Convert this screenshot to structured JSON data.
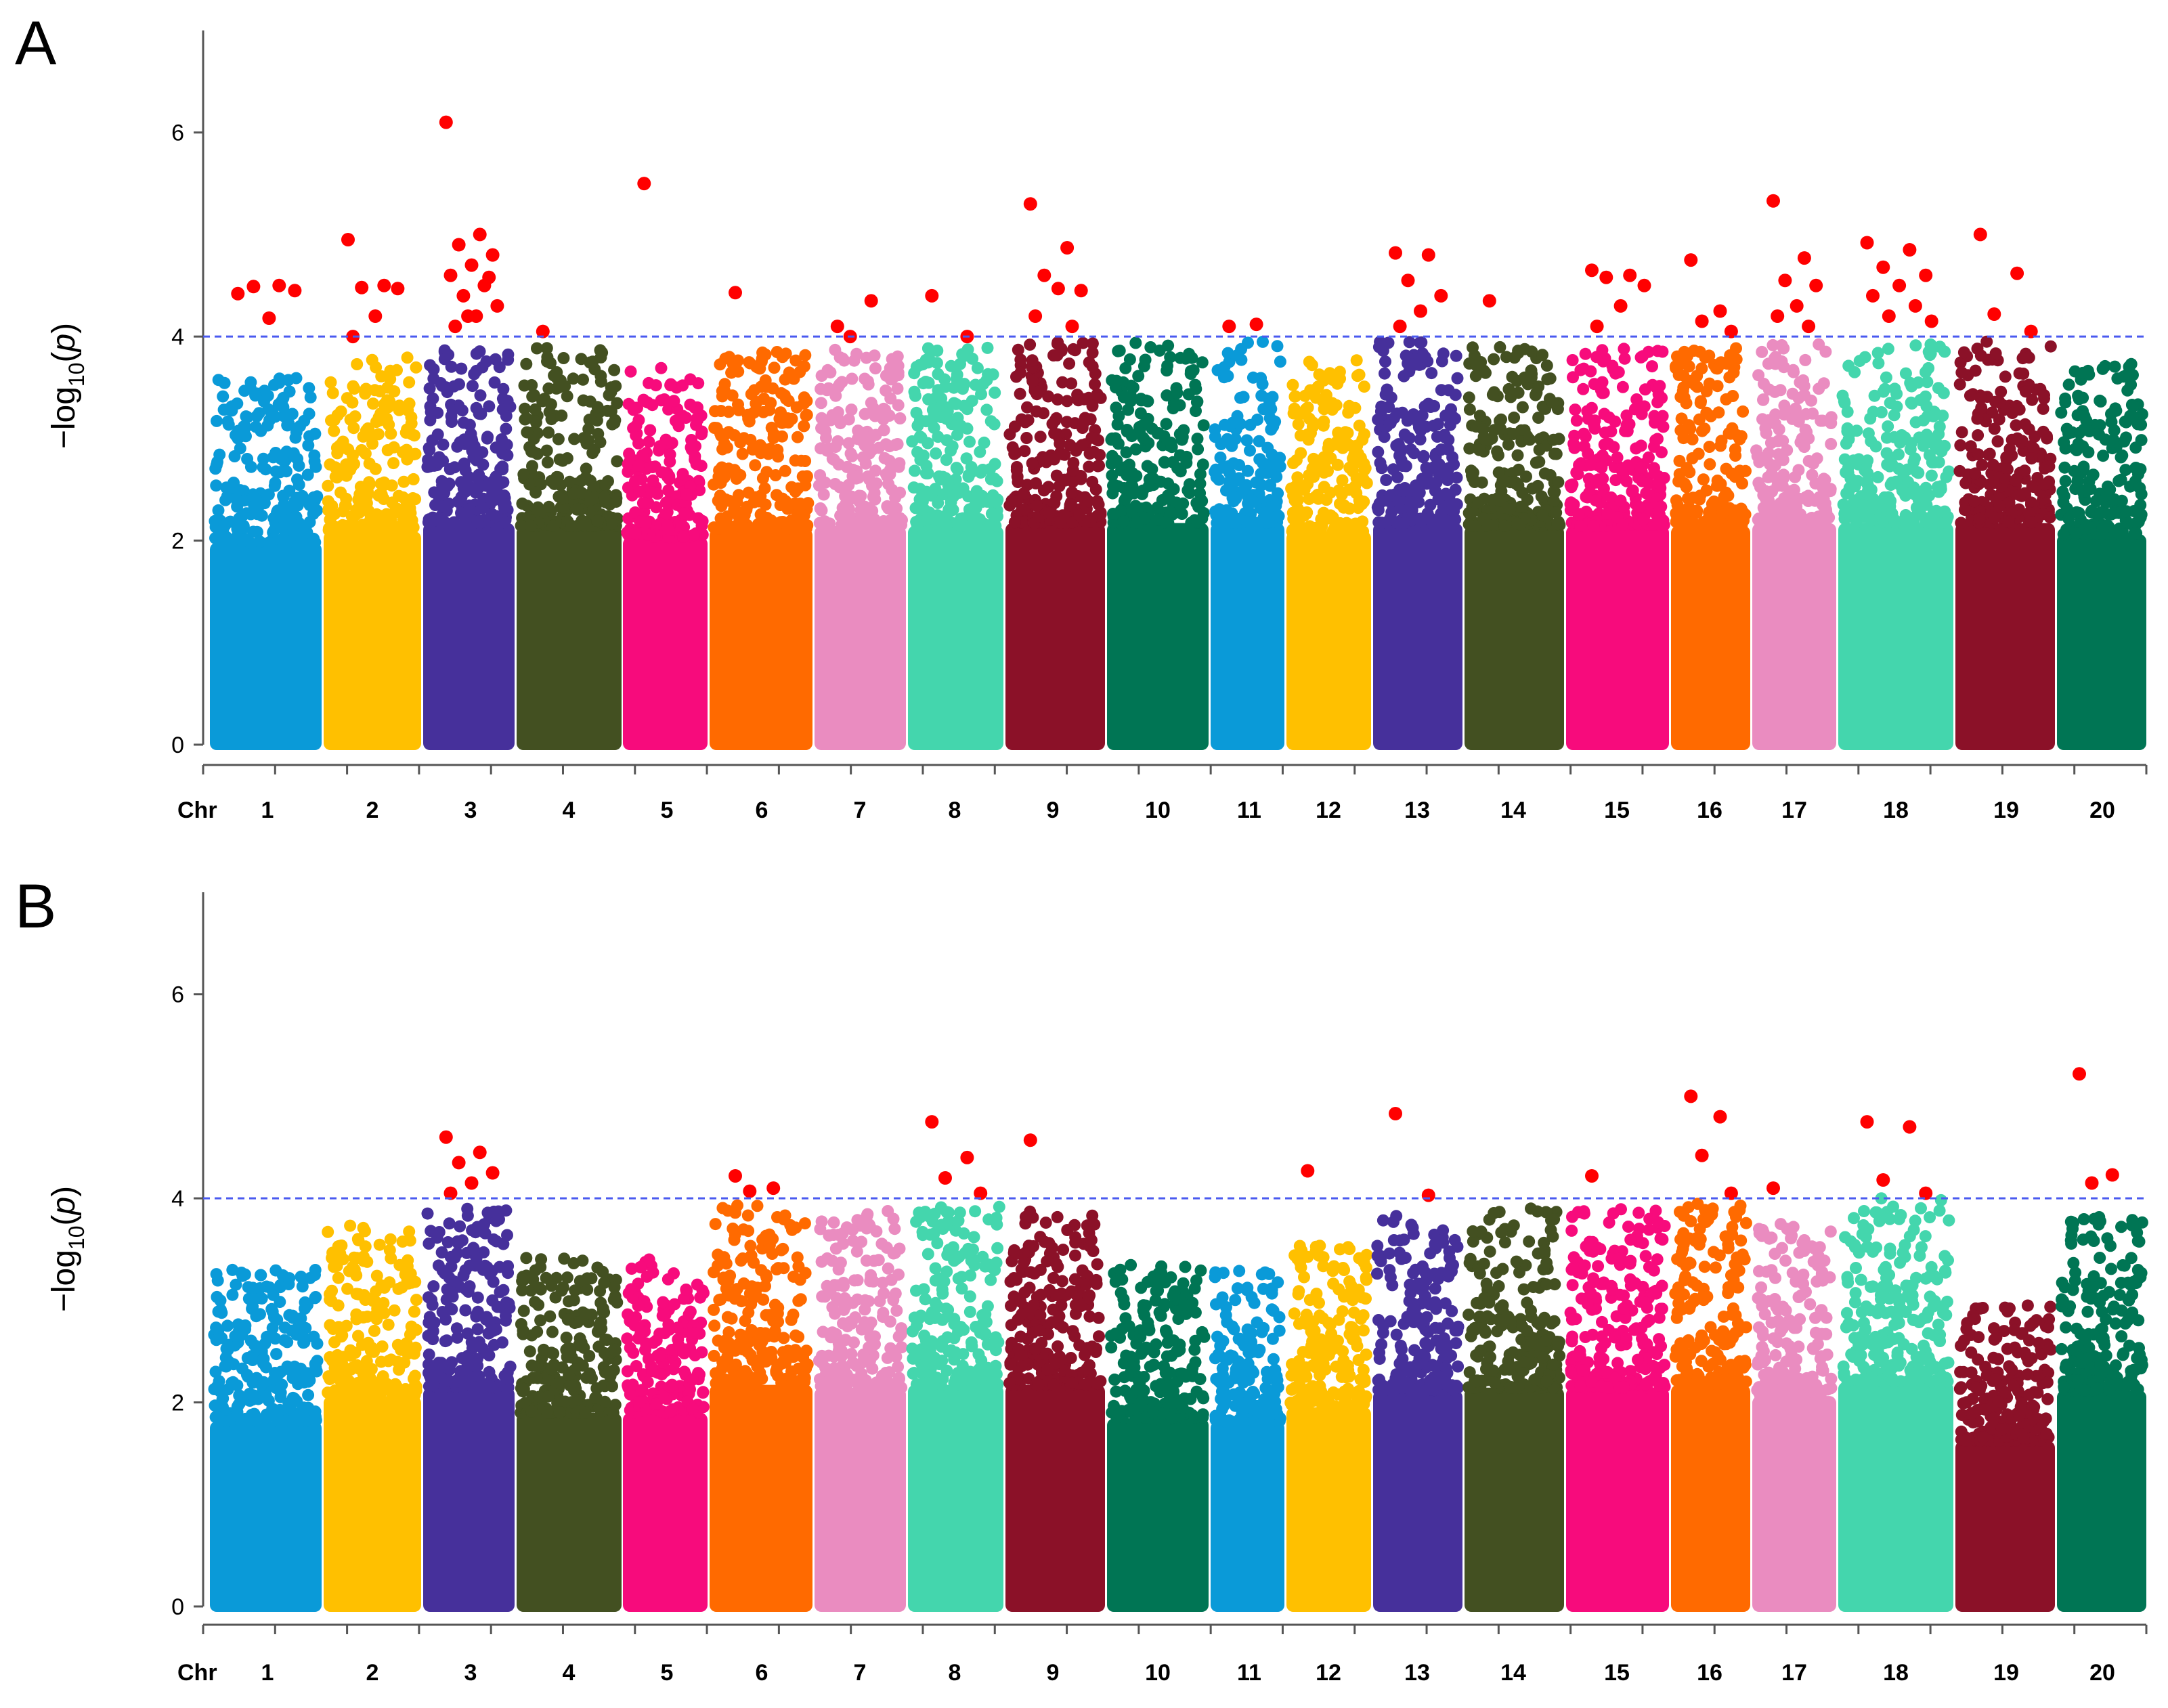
{
  "colors": {
    "significant": "#ff0000",
    "threshold_line": "#4a5af0",
    "chromosome_palette": [
      "#0a9ad8",
      "#ffc000",
      "#46309b",
      "#435021",
      "#f70b7c",
      "#ff6a00",
      "#ea8cc0",
      "#44d6ad",
      "#8b1128",
      "#007554"
    ]
  },
  "chart_data": [
    {
      "type": "scatter",
      "panel": "A",
      "ylabel": "-log10(p)",
      "ylim": [
        0,
        7
      ],
      "yticks": [
        0,
        2,
        4,
        6
      ],
      "threshold": 4,
      "x_axis_label": "Chr",
      "chromosomes": [
        {
          "chr": "1",
          "max": 3.6,
          "peaks": [
            4.42,
            4.5,
            4.49,
            4.45,
            4.18
          ]
        },
        {
          "chr": "2",
          "max": 3.8,
          "peaks": [
            4.95,
            4.5,
            4.48,
            4.47,
            4.2,
            4.0
          ]
        },
        {
          "chr": "3",
          "max": 3.95,
          "peaks": [
            6.1,
            5.0,
            4.9,
            4.8,
            4.7,
            4.6,
            4.5,
            4.4,
            4.3,
            4.2,
            4.1,
            4.58,
            4.2
          ]
        },
        {
          "chr": "4",
          "max": 3.9,
          "peaks": [
            4.05
          ]
        },
        {
          "chr": "5",
          "max": 3.7,
          "peaks": [
            5.5
          ]
        },
        {
          "chr": "6",
          "max": 3.85,
          "peaks": [
            4.43
          ]
        },
        {
          "chr": "7",
          "max": 3.9,
          "peaks": [
            4.1,
            4.35,
            4.0
          ]
        },
        {
          "chr": "8",
          "max": 3.9,
          "peaks": [
            4.4,
            4.0
          ]
        },
        {
          "chr": "9",
          "max": 3.95,
          "peaks": [
            5.3,
            4.87,
            4.6,
            4.45,
            4.47,
            4.2,
            4.1
          ]
        },
        {
          "chr": "10",
          "max": 3.95,
          "peaks": []
        },
        {
          "chr": "11",
          "max": 3.95,
          "peaks": [
            4.1,
            4.12
          ]
        },
        {
          "chr": "12",
          "max": 3.8,
          "peaks": []
        },
        {
          "chr": "13",
          "max": 3.95,
          "peaks": [
            4.82,
            4.8,
            4.55,
            4.4,
            4.25,
            4.1
          ]
        },
        {
          "chr": "14",
          "max": 3.9,
          "peaks": [
            4.35
          ]
        },
        {
          "chr": "15",
          "max": 3.9,
          "peaks": [
            4.65,
            4.6,
            4.58,
            4.5,
            4.3,
            4.1
          ]
        },
        {
          "chr": "16",
          "max": 3.9,
          "peaks": [
            4.75,
            4.25,
            4.15,
            4.05
          ]
        },
        {
          "chr": "17",
          "max": 3.95,
          "peaks": [
            5.33,
            4.77,
            4.55,
            4.5,
            4.3,
            4.2,
            4.1
          ]
        },
        {
          "chr": "18",
          "max": 3.95,
          "peaks": [
            4.92,
            4.85,
            4.68,
            4.6,
            4.5,
            4.4,
            4.3,
            4.2,
            4.15
          ]
        },
        {
          "chr": "19",
          "max": 3.95,
          "peaks": [
            5.0,
            4.62,
            4.22,
            4.05
          ]
        },
        {
          "chr": "20",
          "max": 3.75,
          "peaks": []
        }
      ]
    },
    {
      "type": "scatter",
      "panel": "B",
      "ylabel": "-log10(p)",
      "ylim": [
        0,
        7
      ],
      "yticks": [
        0,
        2,
        4,
        6
      ],
      "threshold": 4,
      "x_axis_label": "Chr",
      "chromosomes": [
        {
          "chr": "1",
          "max": 3.3,
          "peaks": []
        },
        {
          "chr": "2",
          "max": 3.75,
          "peaks": []
        },
        {
          "chr": "3",
          "max": 3.9,
          "peaks": [
            4.6,
            4.45,
            4.35,
            4.25,
            4.15,
            4.05
          ]
        },
        {
          "chr": "4",
          "max": 3.45,
          "peaks": []
        },
        {
          "chr": "5",
          "max": 3.45,
          "peaks": []
        },
        {
          "chr": "6",
          "max": 3.95,
          "peaks": [
            4.22,
            4.1,
            4.07
          ]
        },
        {
          "chr": "7",
          "max": 3.9,
          "peaks": []
        },
        {
          "chr": "8",
          "max": 3.95,
          "peaks": [
            4.75,
            4.4,
            4.2,
            4.05
          ]
        },
        {
          "chr": "9",
          "max": 3.95,
          "peaks": [
            4.57
          ]
        },
        {
          "chr": "10",
          "max": 3.35,
          "peaks": []
        },
        {
          "chr": "11",
          "max": 3.3,
          "peaks": []
        },
        {
          "chr": "12",
          "max": 3.55,
          "peaks": [
            4.27
          ]
        },
        {
          "chr": "13",
          "max": 3.85,
          "peaks": [
            4.83,
            4.03
          ]
        },
        {
          "chr": "14",
          "max": 3.9,
          "peaks": []
        },
        {
          "chr": "15",
          "max": 3.9,
          "peaks": [
            4.22
          ]
        },
        {
          "chr": "16",
          "max": 3.95,
          "peaks": [
            5.0,
            4.8,
            4.42,
            4.05
          ]
        },
        {
          "chr": "17",
          "max": 3.75,
          "peaks": [
            4.1
          ]
        },
        {
          "chr": "18",
          "max": 4.0,
          "peaks": [
            4.75,
            4.7,
            4.18,
            4.05
          ]
        },
        {
          "chr": "19",
          "max": 2.95,
          "peaks": []
        },
        {
          "chr": "20",
          "max": 3.85,
          "peaks": [
            5.22,
            4.23,
            4.15
          ]
        }
      ]
    }
  ]
}
